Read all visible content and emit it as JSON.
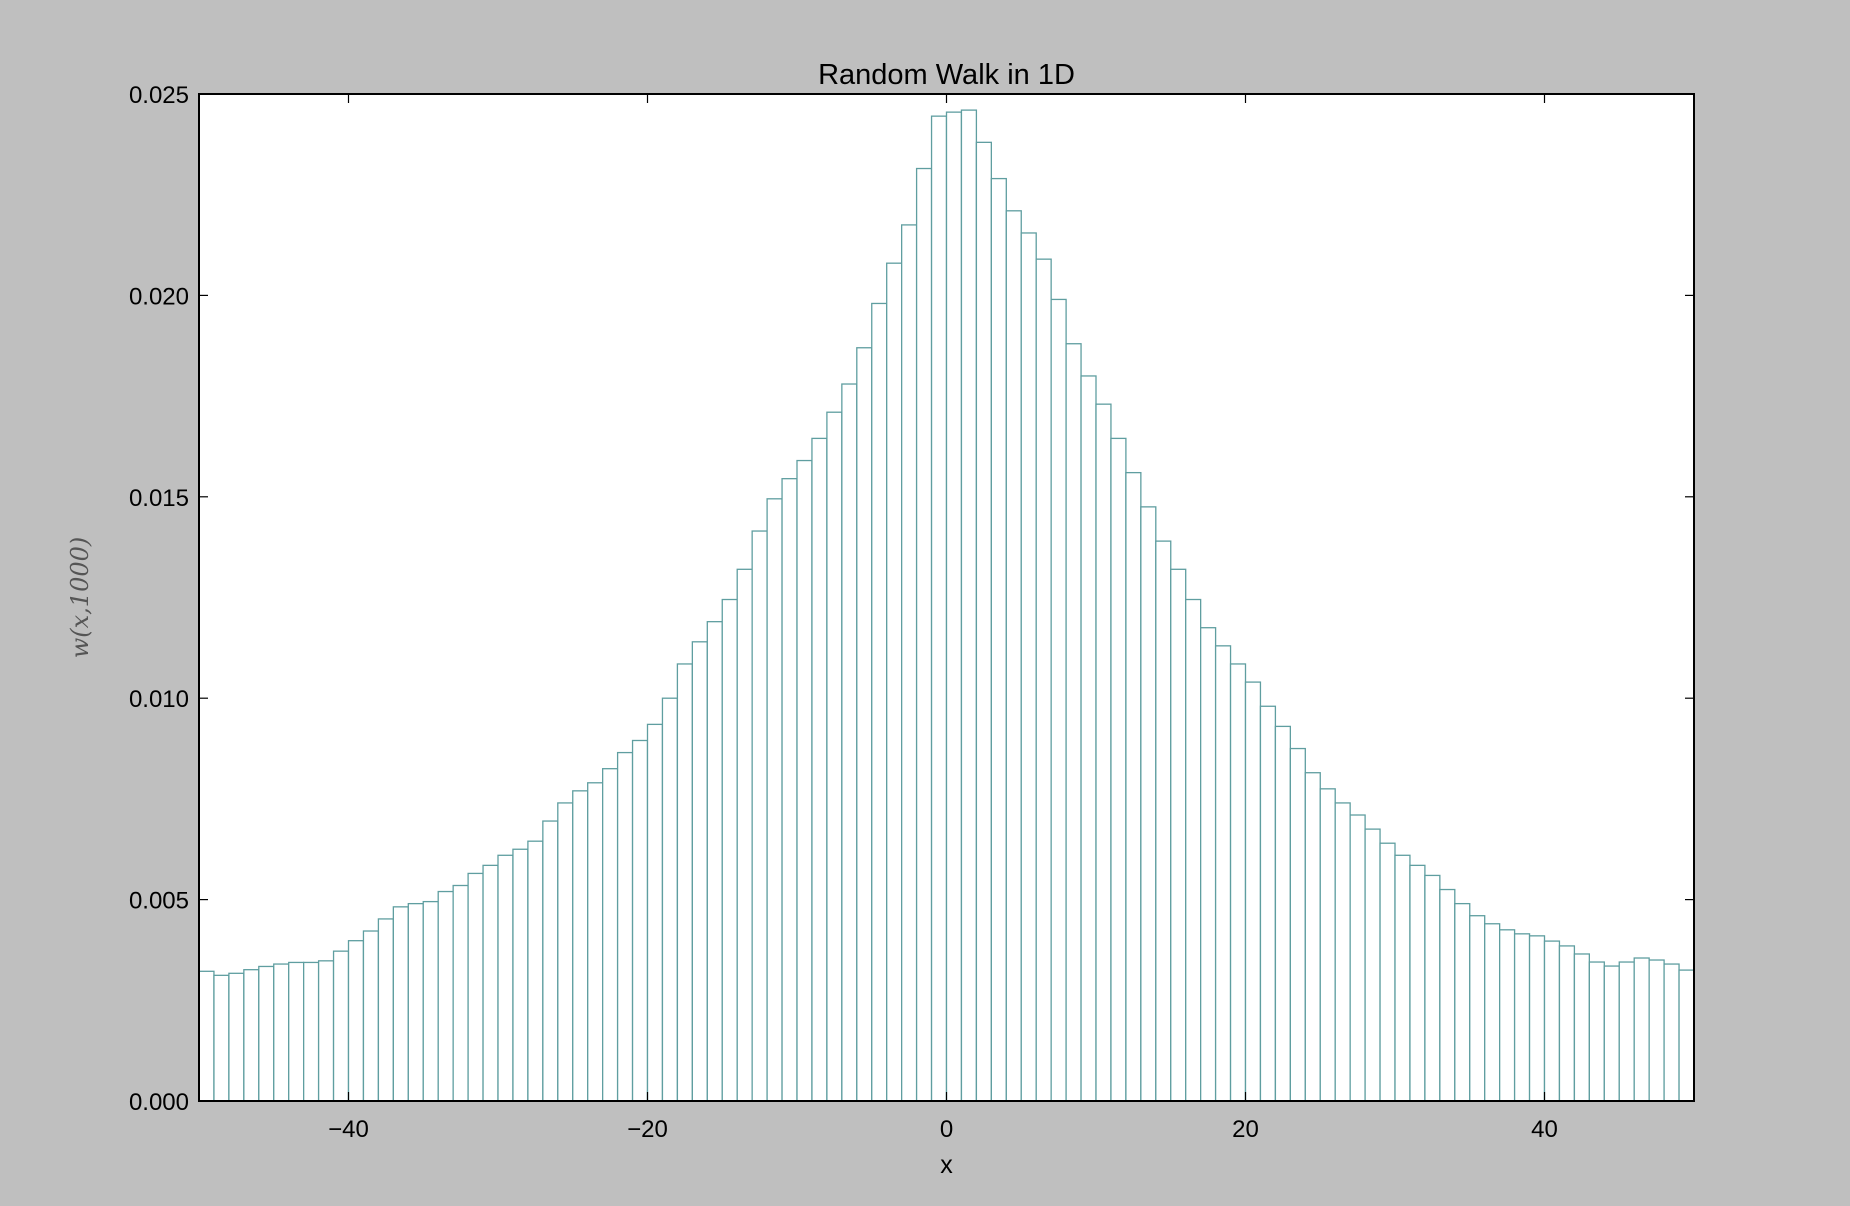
{
  "chart_data": {
    "type": "bar",
    "title": "Random Walk in 1D",
    "xlabel": "x",
    "ylabel": "w(x,1000)",
    "xlim": [
      -50,
      50
    ],
    "ylim": [
      0,
      0.025
    ],
    "xticks": [
      -40,
      -20,
      0,
      20,
      40
    ],
    "xtick_labels": [
      "−40",
      "−20",
      "0",
      "20",
      "40"
    ],
    "yticks": [
      0,
      0.005,
      0.01,
      0.015,
      0.02,
      0.025
    ],
    "ytick_labels": [
      "0.000",
      "0.005",
      "0.010",
      "0.015",
      "0.020",
      "0.025"
    ],
    "grid": false,
    "bar_edge_color": "#5f9ea0",
    "bar_fill_color": "#ffffff",
    "plot_background": "#ffffff",
    "figure_background": "#bfbfbf",
    "bin_edges_start": -50,
    "bin_width": 1,
    "values": [
      0.00322,
      0.00312,
      0.00317,
      0.00326,
      0.00334,
      0.0034,
      0.00344,
      0.00344,
      0.00348,
      0.00372,
      0.00398,
      0.00422,
      0.00452,
      0.00482,
      0.0049,
      0.00495,
      0.0052,
      0.00535,
      0.00565,
      0.00585,
      0.0061,
      0.00625,
      0.00645,
      0.00695,
      0.0074,
      0.0077,
      0.0079,
      0.00825,
      0.00865,
      0.00895,
      0.00935,
      0.01,
      0.01085,
      0.0114,
      0.0119,
      0.01245,
      0.0132,
      0.01415,
      0.01495,
      0.01545,
      0.0159,
      0.01645,
      0.0171,
      0.0178,
      0.0187,
      0.0198,
      0.0208,
      0.02175,
      0.02315,
      0.02445,
      0.02455,
      0.0246,
      0.0238,
      0.0229,
      0.0221,
      0.02155,
      0.0209,
      0.0199,
      0.0188,
      0.018,
      0.0173,
      0.01645,
      0.0156,
      0.01475,
      0.0139,
      0.0132,
      0.01245,
      0.01175,
      0.0113,
      0.01085,
      0.0104,
      0.0098,
      0.0093,
      0.00875,
      0.00815,
      0.00775,
      0.0074,
      0.0071,
      0.00675,
      0.0064,
      0.0061,
      0.00585,
      0.0056,
      0.00525,
      0.0049,
      0.0046,
      0.0044,
      0.00425,
      0.00415,
      0.0041,
      0.00397,
      0.00385,
      0.00365,
      0.00345,
      0.00335,
      0.00345,
      0.00355,
      0.0035,
      0.0034,
      0.00325
    ]
  }
}
